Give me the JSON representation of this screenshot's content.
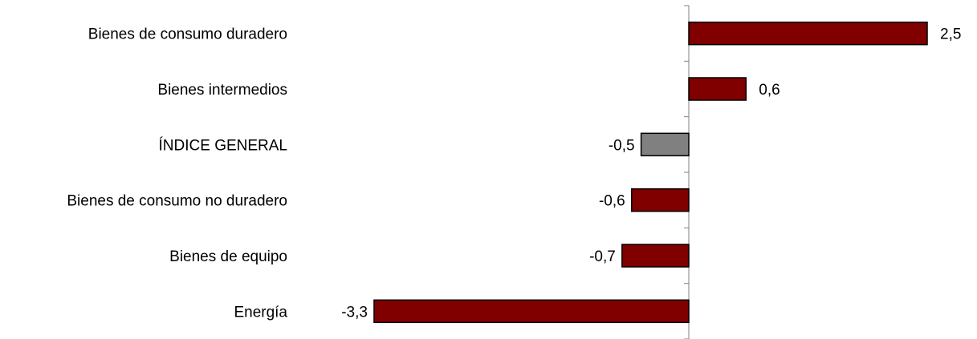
{
  "chart_data": {
    "type": "bar",
    "orientation": "horizontal",
    "title": "",
    "xlabel": "",
    "ylabel": "",
    "categories": [
      "Bienes de consumo duradero",
      "Bienes intermedios",
      "ÍNDICE GENERAL",
      "Bienes de consumo no duradero",
      "Bienes de equipo",
      "Energía"
    ],
    "values": [
      2.5,
      0.6,
      -0.5,
      -0.6,
      -0.7,
      -3.3
    ],
    "value_labels": [
      "2,5",
      "0,6",
      "-0,5",
      "-0,6",
      "-0,7",
      "-3,3"
    ],
    "colors": [
      "#800000",
      "#800000",
      "#808080",
      "#800000",
      "#800000",
      "#800000"
    ],
    "xlim": [
      -3.3,
      2.5
    ],
    "grid": false,
    "legend": "none"
  }
}
